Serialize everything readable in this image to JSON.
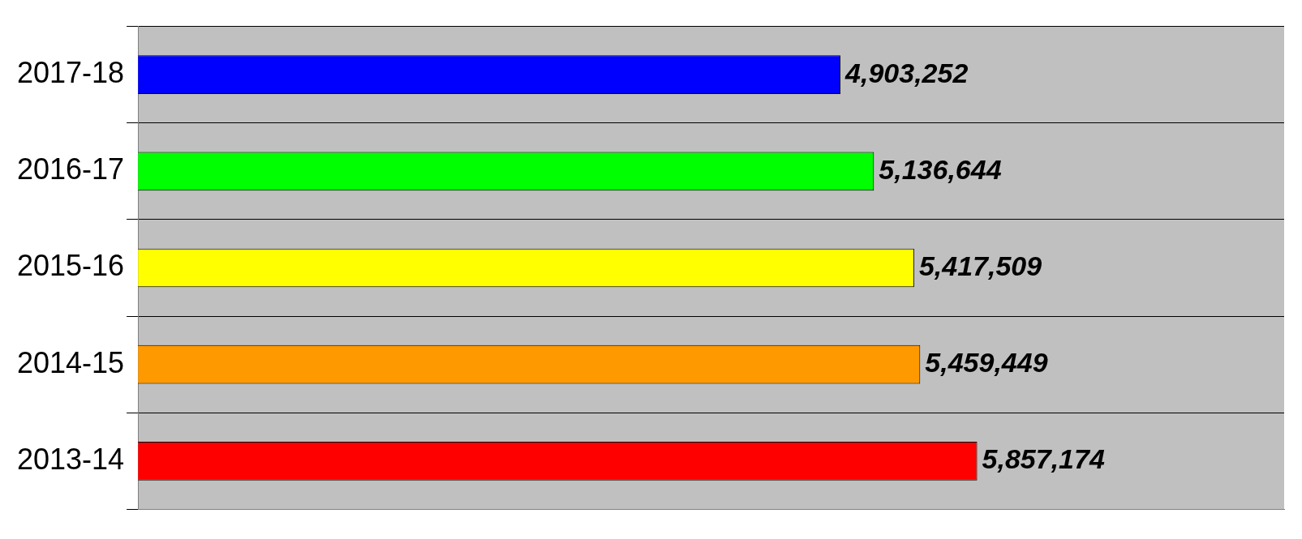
{
  "chart_data": {
    "type": "bar",
    "orientation": "horizontal",
    "categories": [
      "2017-18",
      "2016-17",
      "2015-16",
      "2014-15",
      "2013-14"
    ],
    "values": [
      4903252,
      5136644,
      5417509,
      5459449,
      5857174
    ],
    "value_labels": [
      "4,903,252",
      "5,136,644",
      "5,417,509",
      "5,459,449",
      "5,857,174"
    ],
    "colors": [
      "#0000ff",
      "#00ff00",
      "#ffff00",
      "#ff9900",
      "#ff0000"
    ],
    "tick_labels": "y",
    "grid": "y",
    "legend": false
  }
}
